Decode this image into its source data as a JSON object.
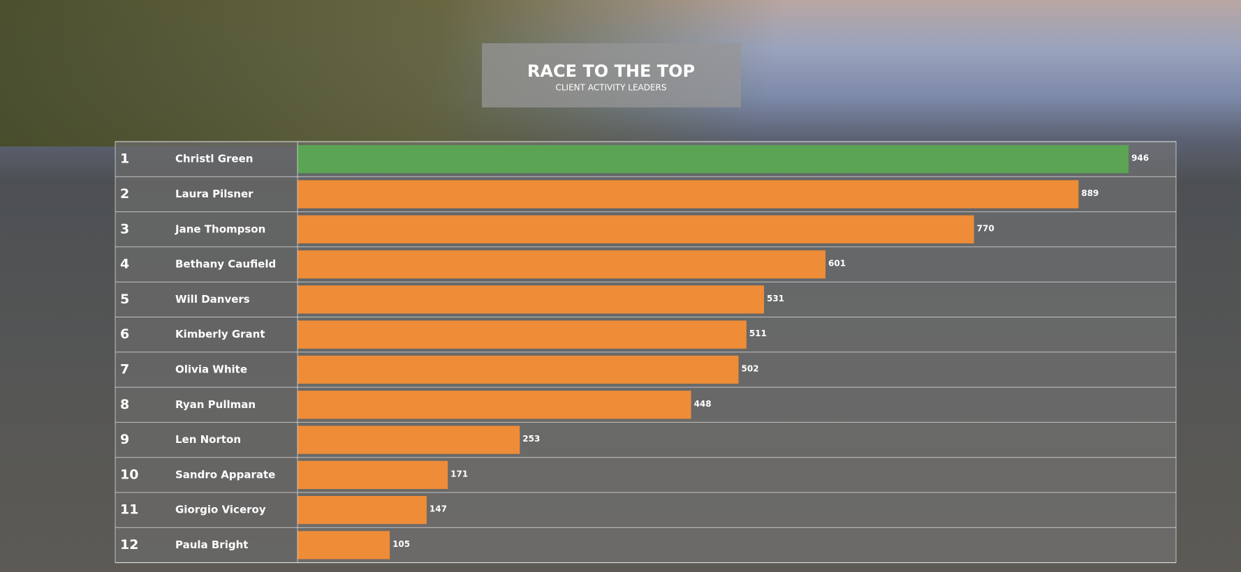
{
  "chart_data": {
    "type": "bar",
    "orientation": "horizontal",
    "title": "RACE TO THE TOP",
    "subtitle": "CLIENT ACTIVITY LEADERS",
    "ranks": [
      "1",
      "2",
      "3",
      "4",
      "5",
      "6",
      "7",
      "8",
      "9",
      "10",
      "11",
      "12"
    ],
    "categories": [
      "Christl Green",
      "Laura Pilsner",
      "Jane Thompson",
      "Bethany Caufield",
      "Will Danvers",
      "Kimberly Grant",
      "Olivia White",
      "Ryan Pullman",
      "Len Norton",
      "Sandro Apparate",
      "Giorgio Viceroy",
      "Paula Bright"
    ],
    "values": [
      946,
      889,
      770,
      601,
      531,
      511,
      502,
      448,
      253,
      171,
      147,
      105
    ],
    "colors": [
      "#5aa454",
      "#ee8c38",
      "#ee8c38",
      "#ee8c38",
      "#ee8c38",
      "#ee8c38",
      "#ee8c38",
      "#ee8c38",
      "#ee8c38",
      "#ee8c38",
      "#ee8c38",
      "#ee8c38"
    ],
    "xlim": [
      0,
      1000
    ]
  }
}
